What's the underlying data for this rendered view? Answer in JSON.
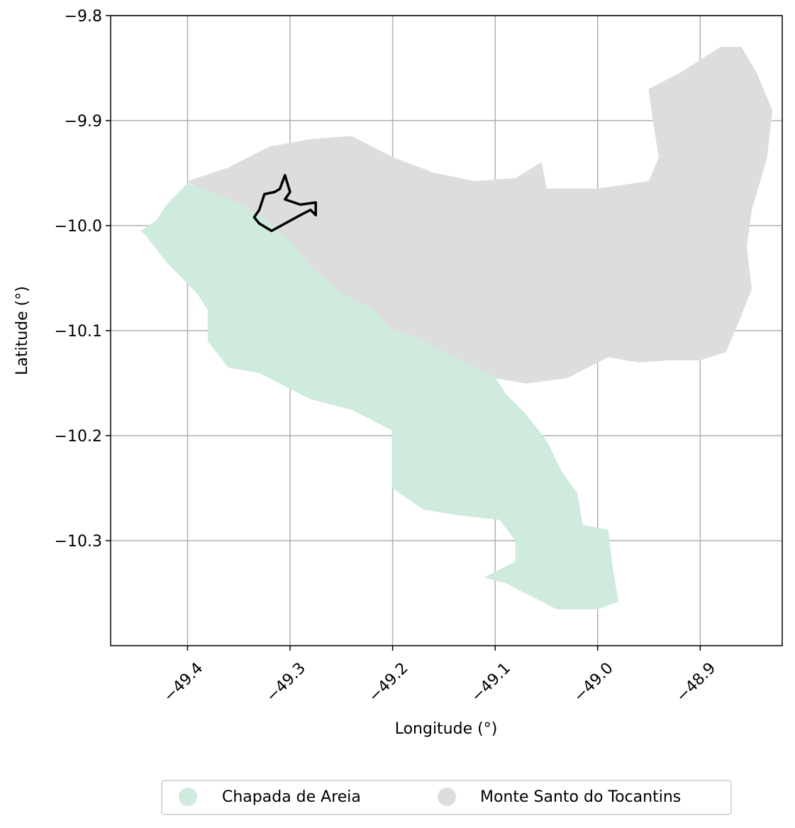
{
  "map": {
    "xlabel": "Longitude (°)",
    "ylabel": "Latitude (°)",
    "xlim": [
      -49.475,
      -48.82
    ],
    "ylim": [
      -10.4,
      -9.8
    ],
    "x_ticks": [
      -49.4,
      -49.3,
      -49.2,
      -49.1,
      -49.0,
      -48.9
    ],
    "x_tick_labels": [
      "−49.4",
      "−49.3",
      "−49.2",
      "−49.1",
      "−49.0",
      "−48.9"
    ],
    "y_ticks": [
      -9.8,
      -9.9,
      -10.0,
      -10.1,
      -10.2,
      -10.3
    ],
    "y_tick_labels": [
      "−9.8",
      "−9.9",
      "−10.0",
      "−10.1",
      "−10.2",
      "−10.3"
    ],
    "grid": true,
    "legend_placement": "bottom-center"
  },
  "regions": [
    {
      "name": "Monte Santo do Tocantins",
      "color": "#dddddd",
      "coords": [
        [
          -49.4,
          -9.958
        ],
        [
          -49.36,
          -9.945
        ],
        [
          -49.32,
          -9.925
        ],
        [
          -49.28,
          -9.918
        ],
        [
          -49.24,
          -9.915
        ],
        [
          -49.2,
          -9.935
        ],
        [
          -49.16,
          -9.95
        ],
        [
          -49.12,
          -9.958
        ],
        [
          -49.08,
          -9.955
        ],
        [
          -49.055,
          -9.94
        ],
        [
          -49.05,
          -9.965
        ],
        [
          -49.0,
          -9.965
        ],
        [
          -48.95,
          -9.958
        ],
        [
          -48.94,
          -9.935
        ],
        [
          -48.945,
          -9.905
        ],
        [
          -48.95,
          -9.87
        ],
        [
          -48.92,
          -9.855
        ],
        [
          -48.88,
          -9.83
        ],
        [
          -48.86,
          -9.83
        ],
        [
          -48.845,
          -9.855
        ],
        [
          -48.83,
          -9.89
        ],
        [
          -48.835,
          -9.935
        ],
        [
          -48.85,
          -9.985
        ],
        [
          -48.855,
          -10.02
        ],
        [
          -48.85,
          -10.06
        ],
        [
          -48.86,
          -10.085
        ],
        [
          -48.875,
          -10.12
        ],
        [
          -48.9,
          -10.128
        ],
        [
          -48.93,
          -10.128
        ],
        [
          -48.96,
          -10.13
        ],
        [
          -48.99,
          -10.125
        ],
        [
          -49.03,
          -10.145
        ],
        [
          -49.07,
          -10.15
        ],
        [
          -49.1,
          -10.145
        ],
        [
          -49.13,
          -10.13
        ],
        [
          -49.15,
          -10.12
        ],
        [
          -49.18,
          -10.105
        ],
        [
          -49.2,
          -10.1
        ],
        [
          -49.22,
          -10.08
        ],
        [
          -49.25,
          -10.065
        ],
        [
          -49.28,
          -10.04
        ],
        [
          -49.3,
          -10.015
        ],
        [
          -49.33,
          -9.99
        ],
        [
          -49.37,
          -9.975
        ]
      ]
    },
    {
      "name": "Chapada de Areia",
      "color": "#cfebdd",
      "coords": [
        [
          -49.4,
          -9.96
        ],
        [
          -49.38,
          -9.968
        ],
        [
          -49.36,
          -9.975
        ],
        [
          -49.33,
          -9.99
        ],
        [
          -49.3,
          -10.015
        ],
        [
          -49.28,
          -10.04
        ],
        [
          -49.25,
          -10.065
        ],
        [
          -49.22,
          -10.08
        ],
        [
          -49.2,
          -10.1
        ],
        [
          -49.18,
          -10.105
        ],
        [
          -49.15,
          -10.12
        ],
        [
          -49.13,
          -10.13
        ],
        [
          -49.1,
          -10.145
        ],
        [
          -49.09,
          -10.16
        ],
        [
          -49.07,
          -10.18
        ],
        [
          -49.05,
          -10.205
        ],
        [
          -49.035,
          -10.235
        ],
        [
          -49.02,
          -10.255
        ],
        [
          -49.015,
          -10.285
        ],
        [
          -48.99,
          -10.29
        ],
        [
          -48.985,
          -10.33
        ],
        [
          -48.98,
          -10.358
        ],
        [
          -49.0,
          -10.365
        ],
        [
          -49.04,
          -10.365
        ],
        [
          -49.07,
          -10.35
        ],
        [
          -49.09,
          -10.34
        ],
        [
          -49.11,
          -10.335
        ],
        [
          -49.08,
          -10.32
        ],
        [
          -49.08,
          -10.3
        ],
        [
          -49.095,
          -10.28
        ],
        [
          -49.14,
          -10.275
        ],
        [
          -49.17,
          -10.27
        ],
        [
          -49.2,
          -10.25
        ],
        [
          -49.2,
          -10.225
        ],
        [
          -49.2,
          -10.195
        ],
        [
          -49.24,
          -10.175
        ],
        [
          -49.28,
          -10.165
        ],
        [
          -49.3,
          -10.155
        ],
        [
          -49.33,
          -10.14
        ],
        [
          -49.36,
          -10.135
        ],
        [
          -49.38,
          -10.11
        ],
        [
          -49.38,
          -10.08
        ],
        [
          -49.39,
          -10.065
        ],
        [
          -49.42,
          -10.035
        ],
        [
          -49.44,
          -10.01
        ],
        [
          -49.445,
          -10.005
        ],
        [
          -49.43,
          -9.995
        ],
        [
          -49.42,
          -9.98
        ]
      ]
    }
  ],
  "highlight_outline": {
    "color": "#000000",
    "coords": [
      [
        -49.305,
        -9.952
      ],
      [
        -49.31,
        -9.965
      ],
      [
        -49.315,
        -9.968
      ],
      [
        -49.325,
        -9.97
      ],
      [
        -49.33,
        -9.985
      ],
      [
        -49.335,
        -9.992
      ],
      [
        -49.33,
        -9.998
      ],
      [
        -49.318,
        -10.005
      ],
      [
        -49.29,
        -9.99
      ],
      [
        -49.28,
        -9.985
      ],
      [
        -49.275,
        -9.99
      ],
      [
        -49.275,
        -9.978
      ],
      [
        -49.29,
        -9.98
      ],
      [
        -49.305,
        -9.975
      ],
      [
        -49.3,
        -9.968
      ]
    ]
  },
  "legend": [
    {
      "label": "Chapada de Areia",
      "color": "#cfebdd"
    },
    {
      "label": "Monte Santo do Tocantins",
      "color": "#dddddd"
    }
  ]
}
